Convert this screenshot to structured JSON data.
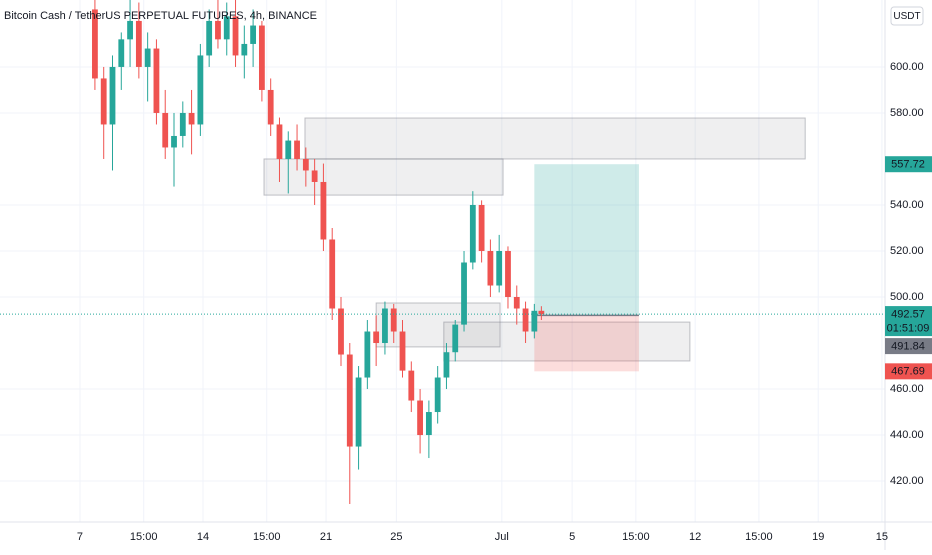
{
  "chart_data": {
    "type": "candlestick",
    "title": "Bitcoin Cash / TetherUS PERPETUAL FUTURES, 4h, BINANCE",
    "currency": "USDT",
    "up_color": "#26a69a",
    "down_color": "#ef5350",
    "x": [
      7.85,
      8.35,
      8.85,
      9.35,
      9.85,
      10.35,
      10.85,
      11.35,
      11.85,
      12.35,
      12.85,
      13.35,
      13.85,
      14.35,
      14.85,
      15.35,
      15.85,
      16.35,
      16.85,
      17.35,
      17.85,
      18.35,
      18.85,
      19.35,
      19.85,
      20.35,
      20.85,
      21.35,
      21.85,
      22.35,
      22.85,
      23.35,
      23.85,
      24.35,
      24.85,
      25.35,
      25.85,
      26.35,
      26.85,
      27.35,
      27.85,
      28.35,
      28.85,
      29.35,
      29.85,
      30.35,
      30.85,
      31.35,
      31.85,
      32.35,
      32.85,
      33.25
    ],
    "open": [
      625,
      595,
      575,
      600,
      612,
      620,
      600,
      608,
      580,
      565,
      570,
      580,
      575,
      605,
      620,
      612,
      622,
      605,
      610,
      618,
      590,
      575,
      560,
      568,
      560,
      555,
      550,
      525,
      495,
      475,
      435,
      465,
      485,
      480,
      495,
      485,
      468,
      455,
      440,
      450,
      465,
      476,
      488,
      515,
      540,
      520,
      505,
      520,
      500,
      495,
      485,
      494
    ],
    "high": [
      630,
      600,
      605,
      615,
      630,
      628,
      615,
      612,
      590,
      580,
      585,
      590,
      610,
      625,
      630,
      628,
      630,
      618,
      625,
      620,
      595,
      578,
      572,
      575,
      565,
      560,
      558,
      530,
      500,
      480,
      470,
      490,
      492,
      498,
      497,
      490,
      472,
      460,
      455,
      470,
      480,
      490,
      520,
      546,
      542,
      525,
      527,
      522,
      505,
      498,
      497,
      496
    ],
    "low": [
      590,
      560,
      555,
      590,
      600,
      595,
      585,
      575,
      560,
      548,
      565,
      562,
      570,
      600,
      608,
      605,
      600,
      595,
      600,
      585,
      570,
      550,
      545,
      555,
      548,
      540,
      520,
      490,
      470,
      410,
      425,
      460,
      470,
      475,
      480,
      465,
      450,
      432,
      430,
      445,
      460,
      472,
      485,
      512,
      515,
      500,
      502,
      495,
      488,
      480,
      482,
      490
    ],
    "close": [
      595,
      575,
      600,
      612,
      620,
      600,
      608,
      580,
      565,
      570,
      580,
      575,
      605,
      620,
      612,
      622,
      605,
      610,
      618,
      590,
      575,
      560,
      568,
      560,
      555,
      550,
      525,
      495,
      475,
      435,
      465,
      485,
      480,
      495,
      485,
      468,
      455,
      440,
      450,
      465,
      476,
      488,
      515,
      540,
      520,
      505,
      520,
      500,
      495,
      485,
      494,
      492.57
    ],
    "zones": [
      {
        "x": [
          19.8,
          48.26
        ],
        "y": [
          560,
          577.8
        ]
      },
      {
        "x": [
          17.47,
          31.07
        ],
        "y": [
          544.3,
          560
        ]
      },
      {
        "x": [
          23.85,
          30.9
        ],
        "y": [
          478.3,
          497.4
        ]
      },
      {
        "x": [
          27.7,
          41.7
        ],
        "y": [
          472.2,
          489.1
        ]
      }
    ],
    "position": {
      "x": [
        32.85,
        38.8
      ],
      "entry": 492,
      "target": 557.72,
      "stop": 467.69
    },
    "last_price": 492.57,
    "countdown": "01:51:09",
    "prev_close": 491.84,
    "xlim": [
      2.45,
      52.8
    ],
    "ylim": [
      402.2,
      629.1
    ],
    "xticks": [
      7,
      {
        "value": 10.625,
        "label": "15:00"
      },
      14,
      {
        "value": 17.625,
        "label": "15:00"
      },
      21,
      25,
      {
        "value": 31,
        "label": "Jul"
      },
      {
        "value": 35,
        "label": "5"
      },
      {
        "value": 38.625,
        "label": "15:00"
      },
      {
        "value": 42,
        "label": "12"
      },
      {
        "value": 45.625,
        "label": "15:00"
      },
      {
        "value": 49,
        "label": "19"
      },
      {
        "value": 52.625,
        "label": "15"
      }
    ],
    "yticks": [
      {
        "value": 420,
        "label": "420.00"
      },
      {
        "value": 440,
        "label": "440.00"
      },
      {
        "value": 460,
        "label": "460.00"
      },
      {
        "value": 500,
        "label": "500.00"
      },
      {
        "value": 520,
        "label": "520.00"
      },
      {
        "value": 540,
        "label": "540.00"
      },
      {
        "value": 580,
        "label": "580.00"
      },
      {
        "value": 600,
        "label": "600.00"
      }
    ],
    "grid": true
  }
}
